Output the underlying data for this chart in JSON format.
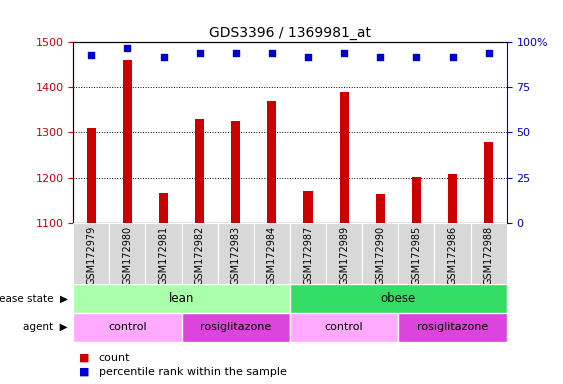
{
  "title": "GDS3396 / 1369981_at",
  "samples": [
    "GSM172979",
    "GSM172980",
    "GSM172981",
    "GSM172982",
    "GSM172983",
    "GSM172984",
    "GSM172987",
    "GSM172989",
    "GSM172990",
    "GSM172985",
    "GSM172986",
    "GSM172988"
  ],
  "bar_values": [
    1310,
    1460,
    1165,
    1330,
    1325,
    1370,
    1170,
    1390,
    1163,
    1202,
    1208,
    1278
  ],
  "percentile_values": [
    93,
    97,
    92,
    94,
    94,
    94,
    92,
    94,
    92,
    92,
    92,
    94
  ],
  "ylim_left": [
    1100,
    1500
  ],
  "ylim_right": [
    0,
    100
  ],
  "yticks_left": [
    1100,
    1200,
    1300,
    1400,
    1500
  ],
  "yticks_right": [
    0,
    25,
    50,
    75,
    100
  ],
  "ytick_right_labels": [
    "0",
    "25",
    "50",
    "75",
    "100%"
  ],
  "bar_color": "#cc0000",
  "dot_color": "#0000cc",
  "bar_width": 0.25,
  "disease_state_groups": [
    {
      "label": "lean",
      "start": 0,
      "end": 6,
      "color": "#aaffaa"
    },
    {
      "label": "obese",
      "start": 6,
      "end": 12,
      "color": "#33dd66"
    }
  ],
  "agent_groups": [
    {
      "label": "control",
      "start": 0,
      "end": 3,
      "color": "#ffaaff"
    },
    {
      "label": "rosiglitazone",
      "start": 3,
      "end": 6,
      "color": "#dd44dd"
    },
    {
      "label": "control",
      "start": 6,
      "end": 9,
      "color": "#ffaaff"
    },
    {
      "label": "rosiglitazone",
      "start": 9,
      "end": 12,
      "color": "#dd44dd"
    }
  ],
  "legend_count_color": "#cc0000",
  "legend_dot_color": "#0000cc",
  "background_color": "#ffffff",
  "grid_color": "#000000",
  "tick_label_color_left": "#cc0000",
  "tick_label_color_right": "#0000cc",
  "xtick_bg_color": "#d8d8d8",
  "label_fontsize": 7,
  "bar_fontsize": 7
}
